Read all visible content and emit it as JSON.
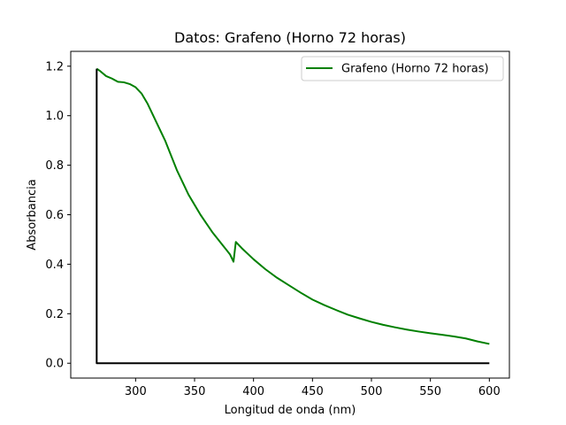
{
  "chart_data": {
    "type": "line",
    "title": "Datos: Grafeno (Horno 72 horas)",
    "xlabel": "Longitud de onda (nm)",
    "ylabel": "Absorbancia",
    "xlim": [
      245,
      617
    ],
    "ylim": [
      -0.06,
      1.26
    ],
    "xticks": [
      300,
      350,
      400,
      450,
      500,
      550,
      600
    ],
    "xtick_labels": [
      "300",
      "350",
      "400",
      "450",
      "500",
      "550",
      "600"
    ],
    "yticks": [
      0.0,
      0.2,
      0.4,
      0.6,
      0.8,
      1.0,
      1.2
    ],
    "ytick_labels": [
      "0.0",
      "0.2",
      "0.4",
      "0.6",
      "0.8",
      "1.0",
      "1.2"
    ],
    "grid": false,
    "legend_position": "upper right",
    "series": [
      {
        "name": "Grafeno (Horno 72 horas)",
        "color": "#008000",
        "x": [
          267,
          270,
          275,
          280,
          285,
          290,
          295,
          300,
          305,
          310,
          315,
          320,
          325,
          330,
          335,
          340,
          345,
          350,
          355,
          360,
          365,
          370,
          375,
          380,
          383,
          385,
          390,
          400,
          410,
          420,
          430,
          440,
          450,
          460,
          470,
          480,
          490,
          500,
          510,
          520,
          530,
          540,
          550,
          560,
          570,
          580,
          590,
          600
        ],
        "y": [
          1.19,
          1.18,
          1.16,
          1.15,
          1.137,
          1.135,
          1.128,
          1.115,
          1.09,
          1.05,
          1.0,
          0.95,
          0.9,
          0.84,
          0.78,
          0.73,
          0.68,
          0.64,
          0.6,
          0.565,
          0.53,
          0.5,
          0.47,
          0.44,
          0.41,
          0.49,
          0.465,
          0.42,
          0.38,
          0.345,
          0.315,
          0.285,
          0.257,
          0.235,
          0.215,
          0.196,
          0.181,
          0.167,
          0.155,
          0.145,
          0.136,
          0.128,
          0.121,
          0.115,
          0.108,
          0.1,
          0.088,
          0.078
        ]
      },
      {
        "name": "",
        "color": "#000000",
        "x": [
          267,
          267,
          600
        ],
        "y": [
          1.19,
          0.0,
          0.0
        ]
      }
    ]
  }
}
